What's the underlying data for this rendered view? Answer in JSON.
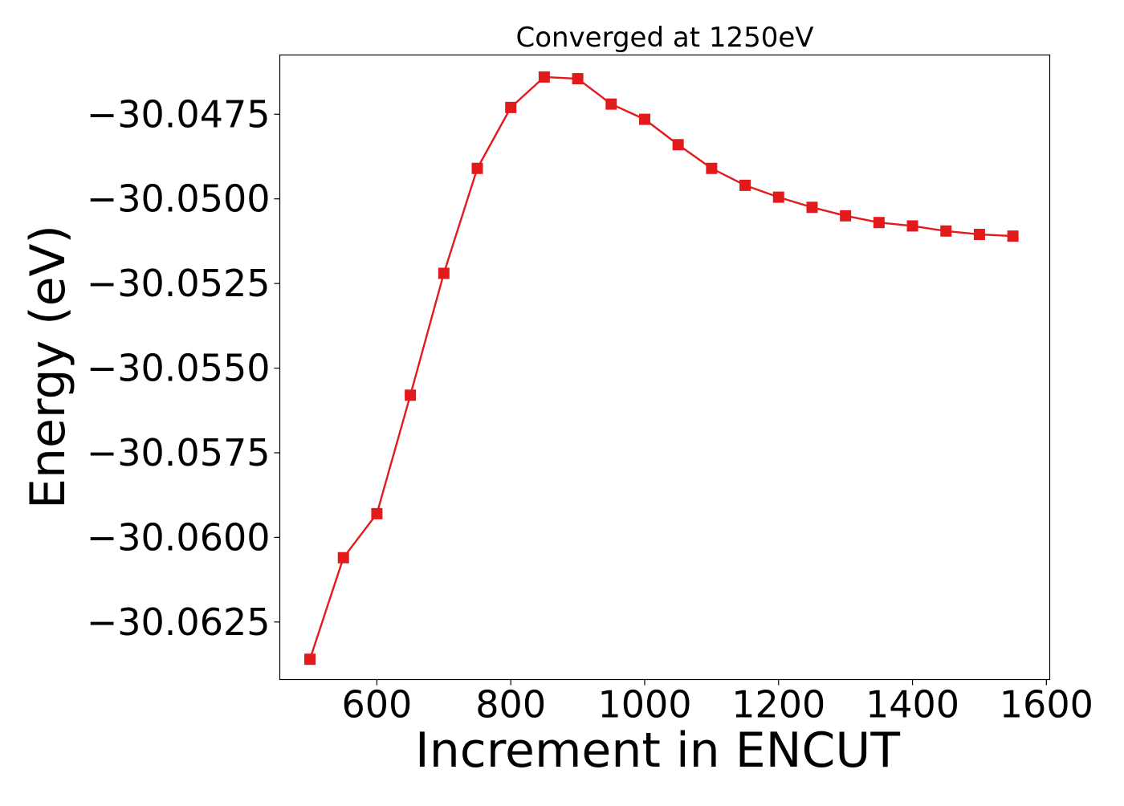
{
  "chart_data": {
    "type": "line",
    "title": "Converged at 1250eV",
    "xlabel": "Increment in ENCUT",
    "ylabel": "Energy (eV)",
    "xlim": [
      455,
      1605
    ],
    "ylim": [
      -30.0642,
      -30.04575
    ],
    "xticks": [
      600,
      800,
      1000,
      1200,
      1400,
      1600
    ],
    "xtick_labels": [
      "600",
      "800",
      "1000",
      "1200",
      "1400",
      "1600"
    ],
    "yticks": [
      -30.0475,
      -30.05,
      -30.0525,
      -30.055,
      -30.0575,
      -30.06,
      -30.0625
    ],
    "ytick_labels": [
      "−30.0475",
      "−30.0500",
      "−30.0525",
      "−30.0550",
      "−30.0575",
      "−30.0600",
      "−30.0625"
    ],
    "grid": false,
    "marker": "square",
    "color": "#e31a1c",
    "series": [
      {
        "x": [
          500,
          550,
          600,
          650,
          700,
          750,
          800,
          850,
          900,
          950,
          1000,
          1050,
          1100,
          1150,
          1200,
          1250,
          1300,
          1350,
          1400,
          1450,
          1500,
          1550
        ],
        "y": [
          -30.0636,
          -30.0606,
          -30.0593,
          -30.0558,
          -30.0522,
          -30.0491,
          -30.0473,
          -30.0464,
          -30.04645,
          -30.0472,
          -30.04765,
          -30.0484,
          -30.0491,
          -30.0496,
          -30.04995,
          -30.05025,
          -30.0505,
          -30.0507,
          -30.0508,
          -30.05095,
          -30.05105,
          -30.0511
        ]
      }
    ]
  }
}
